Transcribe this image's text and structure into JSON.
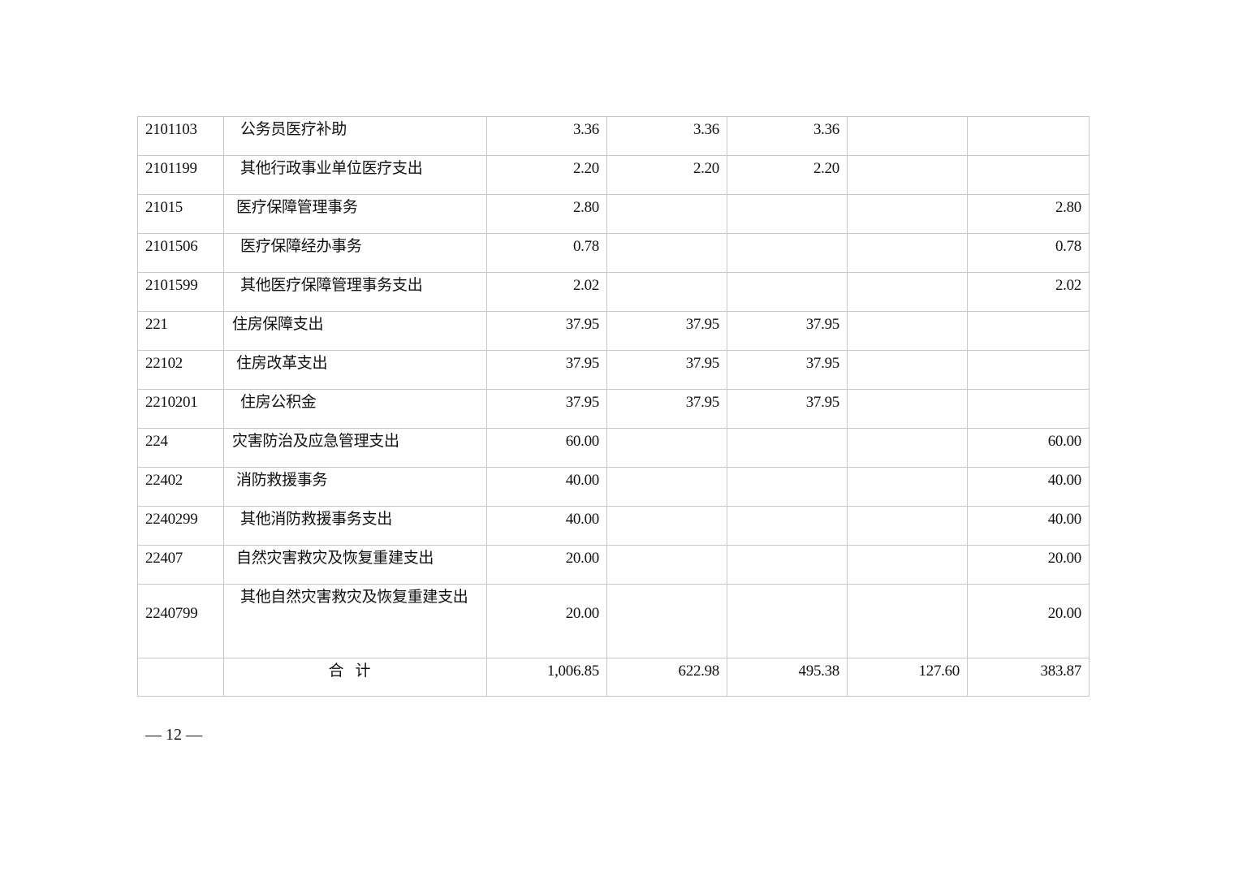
{
  "table": {
    "rows": [
      {
        "code": "2101103",
        "name": "公务员医疗补助",
        "level": 3,
        "values": [
          "3.36",
          "3.36",
          "3.36",
          "",
          ""
        ]
      },
      {
        "code": "2101199",
        "name": "其他行政事业单位医疗支出",
        "level": 3,
        "values": [
          "2.20",
          "2.20",
          "2.20",
          "",
          ""
        ]
      },
      {
        "code": "21015",
        "name": "医疗保障管理事务",
        "level": 2,
        "values": [
          "2.80",
          "",
          "",
          "",
          "2.80"
        ]
      },
      {
        "code": "2101506",
        "name": "医疗保障经办事务",
        "level": 3,
        "values": [
          "0.78",
          "",
          "",
          "",
          "0.78"
        ]
      },
      {
        "code": "2101599",
        "name": "其他医疗保障管理事务支出",
        "level": 3,
        "values": [
          "2.02",
          "",
          "",
          "",
          "2.02"
        ]
      },
      {
        "code": "221",
        "name": "住房保障支出",
        "level": 1,
        "values": [
          "37.95",
          "37.95",
          "37.95",
          "",
          ""
        ]
      },
      {
        "code": "22102",
        "name": "住房改革支出",
        "level": 2,
        "values": [
          "37.95",
          "37.95",
          "37.95",
          "",
          ""
        ]
      },
      {
        "code": "2210201",
        "name": "住房公积金",
        "level": 3,
        "values": [
          "37.95",
          "37.95",
          "37.95",
          "",
          ""
        ]
      },
      {
        "code": "224",
        "name": "灾害防治及应急管理支出",
        "level": 1,
        "values": [
          "60.00",
          "",
          "",
          "",
          "60.00"
        ]
      },
      {
        "code": "22402",
        "name": "消防救援事务",
        "level": 2,
        "values": [
          "40.00",
          "",
          "",
          "",
          "40.00"
        ]
      },
      {
        "code": "2240299",
        "name": "其他消防救援事务支出",
        "level": 3,
        "values": [
          "40.00",
          "",
          "",
          "",
          "40.00"
        ]
      },
      {
        "code": "22407",
        "name": "自然灾害救灾及恢复重建支出",
        "level": 2,
        "values": [
          "20.00",
          "",
          "",
          "",
          "20.00"
        ]
      },
      {
        "code": "2240799",
        "name": "其他自然灾害救灾及恢复重建支出",
        "level": 3,
        "values": [
          "20.00",
          "",
          "",
          "",
          "20.00"
        ]
      }
    ],
    "total": {
      "label": "合计",
      "values": [
        "1,006.85",
        "622.98",
        "495.38",
        "127.60",
        "383.87"
      ]
    }
  },
  "footer": {
    "page_number": "— 12 —"
  }
}
